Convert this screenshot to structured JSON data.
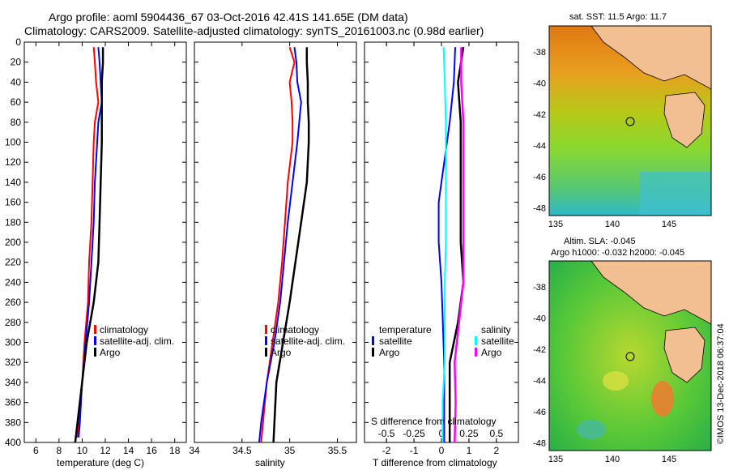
{
  "titles": {
    "line1": "Argo profile: aoml 5904436_67 03-Oct-2016 42.41S 141.65E (DM data)",
    "line2": "Climatology: CARS2009. Satellite-adjusted climatology: synTS_20161003.nc (0.98d earlier)"
  },
  "map_top": {
    "title": "sat. SST: 11.5 Argo: 11.7",
    "yticks": [
      "-38",
      "-40",
      "-42",
      "-44",
      "-46",
      "-48"
    ],
    "xticks": [
      "135",
      "140",
      "145"
    ]
  },
  "map_bottom": {
    "title1": "Altim. SLA: -0.045",
    "title2": "Argo h1000: -0.032 h2000: -0.045",
    "yticks": [
      "-38",
      "-40",
      "-42",
      "-44",
      "-46",
      "-48"
    ],
    "xticks": [
      "135",
      "140",
      "145"
    ]
  },
  "credit": "©IMOS 13-Dec-2018 06:37:04",
  "colors": {
    "climatology": "#ff0000",
    "satellite": "#0000ff",
    "argo": "#000000",
    "sat_salinity": "#00ffff",
    "argo_salinity": "#ff00ff"
  },
  "chart_data": [
    {
      "type": "line",
      "name": "temperature",
      "xlabel": "temperature (deg C)",
      "xlim": [
        5,
        19
      ],
      "ylim": [
        400,
        0
      ],
      "xticks": [
        "6",
        "8",
        "10",
        "12",
        "14",
        "16",
        "18"
      ],
      "yticks": [
        "0",
        "20",
        "40",
        "60",
        "80",
        "100",
        "120",
        "140",
        "160",
        "180",
        "200",
        "220",
        "240",
        "260",
        "280",
        "300",
        "320",
        "340",
        "360",
        "380",
        "400"
      ],
      "legend": [
        "climatology",
        "satellite-adj. clim.",
        "Argo"
      ],
      "series": [
        {
          "name": "climatology",
          "depth": [
            5,
            20,
            40,
            60,
            80,
            100,
            140,
            180,
            220,
            260,
            300,
            340,
            380,
            395
          ],
          "values": [
            11.0,
            11.1,
            11.2,
            11.4,
            11.1,
            11.0,
            10.9,
            10.8,
            10.6,
            10.5,
            10.2,
            10.0,
            9.7,
            9.6
          ]
        },
        {
          "name": "satellite-adj. clim.",
          "depth": [
            5,
            20,
            40,
            60,
            80,
            100,
            140,
            180,
            220,
            260,
            300,
            340,
            380,
            395
          ],
          "values": [
            11.4,
            11.5,
            11.6,
            11.7,
            11.4,
            11.3,
            11.1,
            11.0,
            10.8,
            10.6,
            10.3,
            10.0,
            9.8,
            9.7
          ]
        },
        {
          "name": "Argo",
          "depth": [
            5,
            20,
            40,
            60,
            80,
            100,
            140,
            180,
            220,
            260,
            300,
            340,
            380,
            400
          ],
          "values": [
            11.8,
            11.8,
            11.7,
            11.7,
            11.7,
            11.7,
            11.6,
            11.5,
            11.4,
            11.0,
            10.4,
            10.0,
            9.6,
            9.4
          ]
        }
      ]
    },
    {
      "type": "line",
      "name": "salinity",
      "xlabel": "salinity",
      "xlim": [
        34,
        35.7
      ],
      "ylim": [
        400,
        0
      ],
      "xticks": [
        "34",
        "34.5",
        "35",
        "35.5"
      ],
      "legend": [
        "climatology",
        "satellite-adj. clim.",
        "Argo"
      ],
      "series": [
        {
          "name": "climatology",
          "depth": [
            5,
            20,
            40,
            60,
            80,
            100,
            140,
            180,
            220,
            260,
            300,
            340,
            380,
            400
          ],
          "values": [
            35.0,
            35.05,
            35.0,
            35.02,
            35.03,
            35.03,
            34.98,
            34.95,
            34.92,
            34.88,
            34.82,
            34.76,
            34.72,
            34.7
          ]
        },
        {
          "name": "satellite-adj. clim.",
          "depth": [
            5,
            20,
            40,
            60,
            80,
            100,
            140,
            180,
            220,
            260,
            300,
            340,
            380,
            400
          ],
          "values": [
            35.05,
            35.07,
            35.08,
            35.12,
            35.1,
            35.08,
            35.03,
            34.98,
            34.94,
            34.9,
            34.84,
            34.76,
            34.7,
            34.68
          ]
        },
        {
          "name": "Argo",
          "depth": [
            5,
            20,
            40,
            60,
            80,
            100,
            140,
            180,
            220,
            260,
            300,
            340,
            380,
            400
          ],
          "values": [
            35.18,
            35.18,
            35.19,
            35.19,
            35.2,
            35.2,
            35.18,
            35.12,
            35.06,
            35.0,
            34.93,
            34.86,
            34.84,
            34.83
          ]
        }
      ]
    },
    {
      "type": "line",
      "name": "difference",
      "xlabel": "T difference from climatology",
      "xlabel2": "S difference from climatology",
      "xlim": [
        -2.8,
        2.8
      ],
      "ylim": [
        400,
        0
      ],
      "xticks": [
        "-2",
        "-1",
        "0",
        "1",
        "2"
      ],
      "xticks2": [
        "-0.5",
        "-0.25",
        "0",
        "0.25",
        "0.5"
      ],
      "legend_temperature": {
        "title": "temperature",
        "items": [
          "satellite",
          "Argo"
        ]
      },
      "legend_salinity": {
        "title": "salinity",
        "items": [
          "satellite",
          "Argo"
        ]
      },
      "series": [
        {
          "name": "T satellite",
          "depth": [
            5,
            40,
            80,
            120,
            160,
            200,
            240,
            280,
            320,
            360,
            400
          ],
          "values": [
            0.5,
            0.45,
            0.3,
            0.1,
            -0.1,
            -0.1,
            0.0,
            0.05,
            0.1,
            0.1,
            0.1
          ]
        },
        {
          "name": "T Argo",
          "depth": [
            5,
            40,
            80,
            120,
            160,
            200,
            240,
            280,
            320,
            360,
            400
          ],
          "values": [
            0.8,
            0.6,
            0.7,
            0.7,
            0.7,
            0.7,
            0.8,
            0.6,
            0.3,
            0.3,
            0.3
          ]
        },
        {
          "name": "S satellite",
          "depth": [
            5,
            40,
            80,
            120,
            160,
            200,
            240,
            280,
            320,
            360,
            400
          ],
          "values": [
            0.02,
            0.03,
            0.04,
            0.04,
            0.04,
            0.04,
            0.03,
            0.03,
            0.03,
            0.01,
            0.01
          ]
        },
        {
          "name": "S Argo",
          "depth": [
            5,
            40,
            80,
            120,
            160,
            200,
            240,
            280,
            320,
            360,
            400
          ],
          "values": [
            0.18,
            0.18,
            0.2,
            0.2,
            0.2,
            0.2,
            0.2,
            0.16,
            0.12,
            0.13,
            0.12
          ]
        }
      ]
    }
  ]
}
